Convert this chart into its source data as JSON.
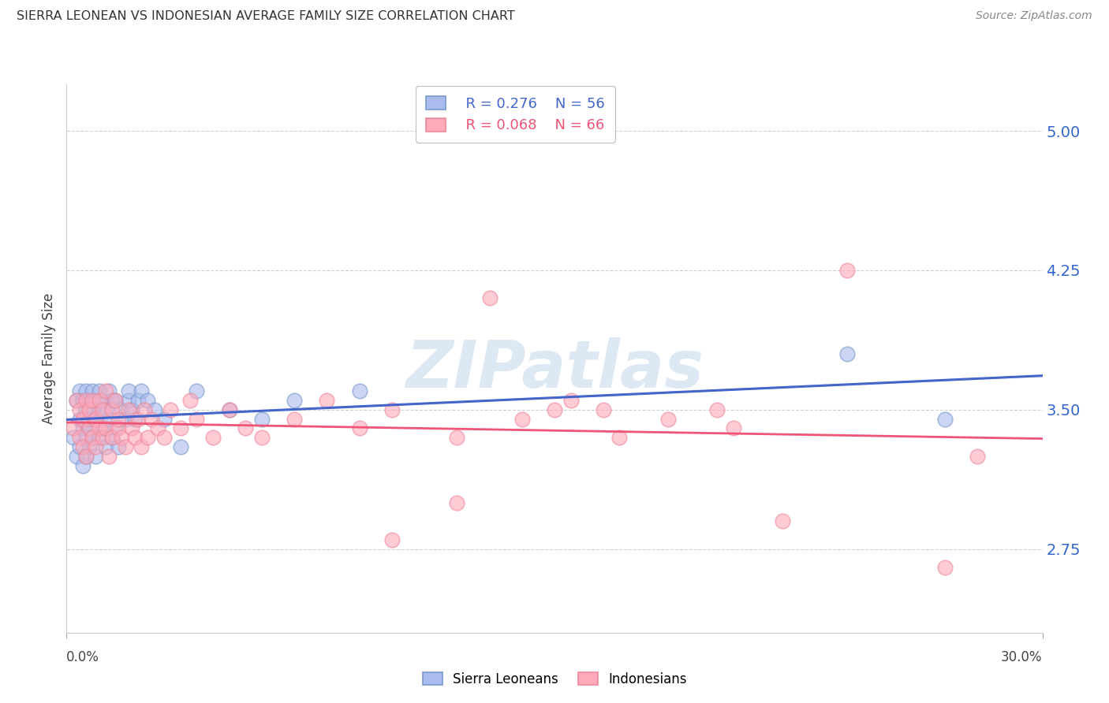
{
  "title": "SIERRA LEONEAN VS INDONESIAN AVERAGE FAMILY SIZE CORRELATION CHART",
  "source": "Source: ZipAtlas.com",
  "ylabel": "Average Family Size",
  "yticks": [
    2.75,
    3.5,
    4.25,
    5.0
  ],
  "xlim": [
    0.0,
    0.3
  ],
  "ylim": [
    2.3,
    5.25
  ],
  "background_color": "#ffffff",
  "grid_color": "#cccccc",
  "sierra_color": "#aabbee",
  "sierra_edge": "#7799cc",
  "indonesian_color": "#ffaabb",
  "indonesian_edge": "#ee8899",
  "blue_line_color": "#4466cc",
  "blue_dash_color": "#88aadd",
  "pink_line_color": "#ee5577",
  "right_tick_color": "#3366cc",
  "watermark_color": "#dde8f5",
  "sierra_x": [
    0.002,
    0.003,
    0.003,
    0.004,
    0.004,
    0.004,
    0.005,
    0.005,
    0.005,
    0.006,
    0.006,
    0.006,
    0.006,
    0.007,
    0.007,
    0.007,
    0.007,
    0.008,
    0.008,
    0.008,
    0.009,
    0.009,
    0.009,
    0.01,
    0.01,
    0.01,
    0.011,
    0.011,
    0.012,
    0.012,
    0.013,
    0.013,
    0.014,
    0.014,
    0.015,
    0.015,
    0.016,
    0.017,
    0.018,
    0.019,
    0.019,
    0.02,
    0.021,
    0.022,
    0.023,
    0.025,
    0.027,
    0.03,
    0.035,
    0.04,
    0.05,
    0.06,
    0.07,
    0.09,
    0.24,
    0.27
  ],
  "sierra_y": [
    3.35,
    3.55,
    3.25,
    3.45,
    3.6,
    3.3,
    3.4,
    3.55,
    3.2,
    3.35,
    3.5,
    3.6,
    3.25,
    3.4,
    3.55,
    3.3,
    3.45,
    3.35,
    3.5,
    3.6,
    3.25,
    3.45,
    3.55,
    3.35,
    3.5,
    3.6,
    3.4,
    3.55,
    3.3,
    3.5,
    3.45,
    3.6,
    3.35,
    3.55,
    3.4,
    3.55,
    3.3,
    3.5,
    3.45,
    3.55,
    3.6,
    3.5,
    3.45,
    3.55,
    3.6,
    3.55,
    3.5,
    3.45,
    3.3,
    3.6,
    3.5,
    3.45,
    3.55,
    3.6,
    3.8,
    3.45
  ],
  "indonesian_x": [
    0.002,
    0.003,
    0.004,
    0.004,
    0.005,
    0.005,
    0.006,
    0.006,
    0.007,
    0.007,
    0.008,
    0.008,
    0.009,
    0.009,
    0.01,
    0.01,
    0.011,
    0.011,
    0.012,
    0.012,
    0.013,
    0.014,
    0.014,
    0.015,
    0.016,
    0.016,
    0.017,
    0.018,
    0.019,
    0.02,
    0.021,
    0.022,
    0.023,
    0.024,
    0.025,
    0.026,
    0.028,
    0.03,
    0.032,
    0.035,
    0.038,
    0.04,
    0.045,
    0.05,
    0.055,
    0.06,
    0.07,
    0.08,
    0.09,
    0.1,
    0.12,
    0.13,
    0.14,
    0.15,
    0.17,
    0.2,
    0.22,
    0.24,
    0.27,
    0.28,
    0.1,
    0.12,
    0.155,
    0.165,
    0.185,
    0.205
  ],
  "indonesian_y": [
    3.4,
    3.55,
    3.35,
    3.5,
    3.45,
    3.3,
    3.55,
    3.25,
    3.4,
    3.5,
    3.35,
    3.55,
    3.3,
    3.45,
    3.4,
    3.55,
    3.35,
    3.5,
    3.6,
    3.4,
    3.25,
    3.5,
    3.35,
    3.55,
    3.4,
    3.45,
    3.35,
    3.3,
    3.5,
    3.4,
    3.35,
    3.45,
    3.3,
    3.5,
    3.35,
    3.45,
    3.4,
    3.35,
    3.5,
    3.4,
    3.55,
    3.45,
    3.35,
    3.5,
    3.4,
    3.35,
    3.45,
    3.55,
    3.4,
    3.5,
    3.35,
    4.1,
    3.45,
    3.5,
    3.35,
    3.5,
    2.9,
    4.25,
    2.65,
    3.25,
    2.8,
    3.0,
    3.55,
    3.5,
    3.45,
    3.4
  ]
}
